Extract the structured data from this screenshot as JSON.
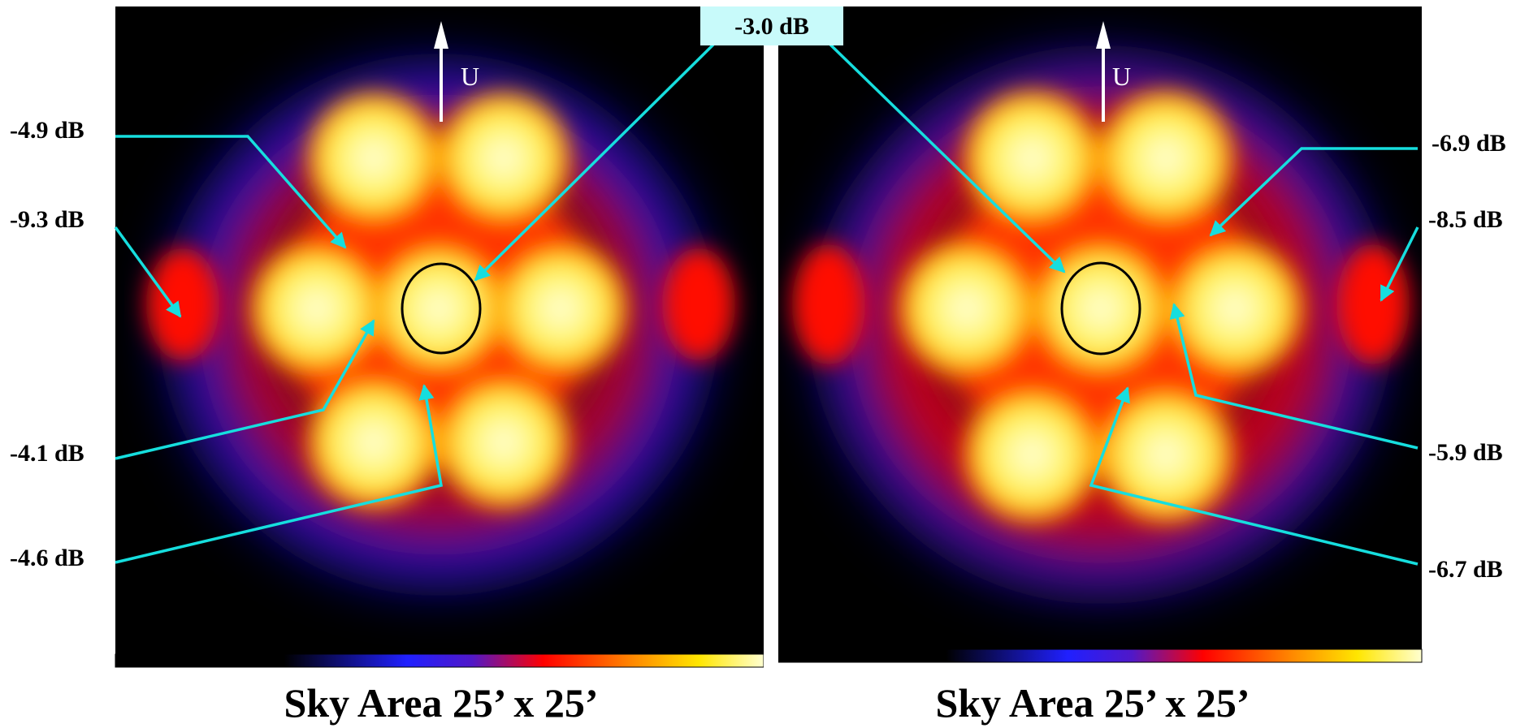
{
  "center_label": "-3.0 dB",
  "colors": {
    "pointer": "#16dede",
    "label_box": "#c8fafa"
  },
  "left_panel": {
    "caption": "Sky Area 25’ x 25’",
    "direction": "U",
    "labels": [
      "-4.9 dB",
      "-9.3 dB",
      "-4.1 dB",
      "-4.6 dB"
    ]
  },
  "right_panel": {
    "caption": "Sky Area 25’ x 25’",
    "direction": "U",
    "labels": [
      "-6.9 dB",
      "-8.5 dB",
      "-5.9 dB",
      "-6.7 dB"
    ]
  }
}
